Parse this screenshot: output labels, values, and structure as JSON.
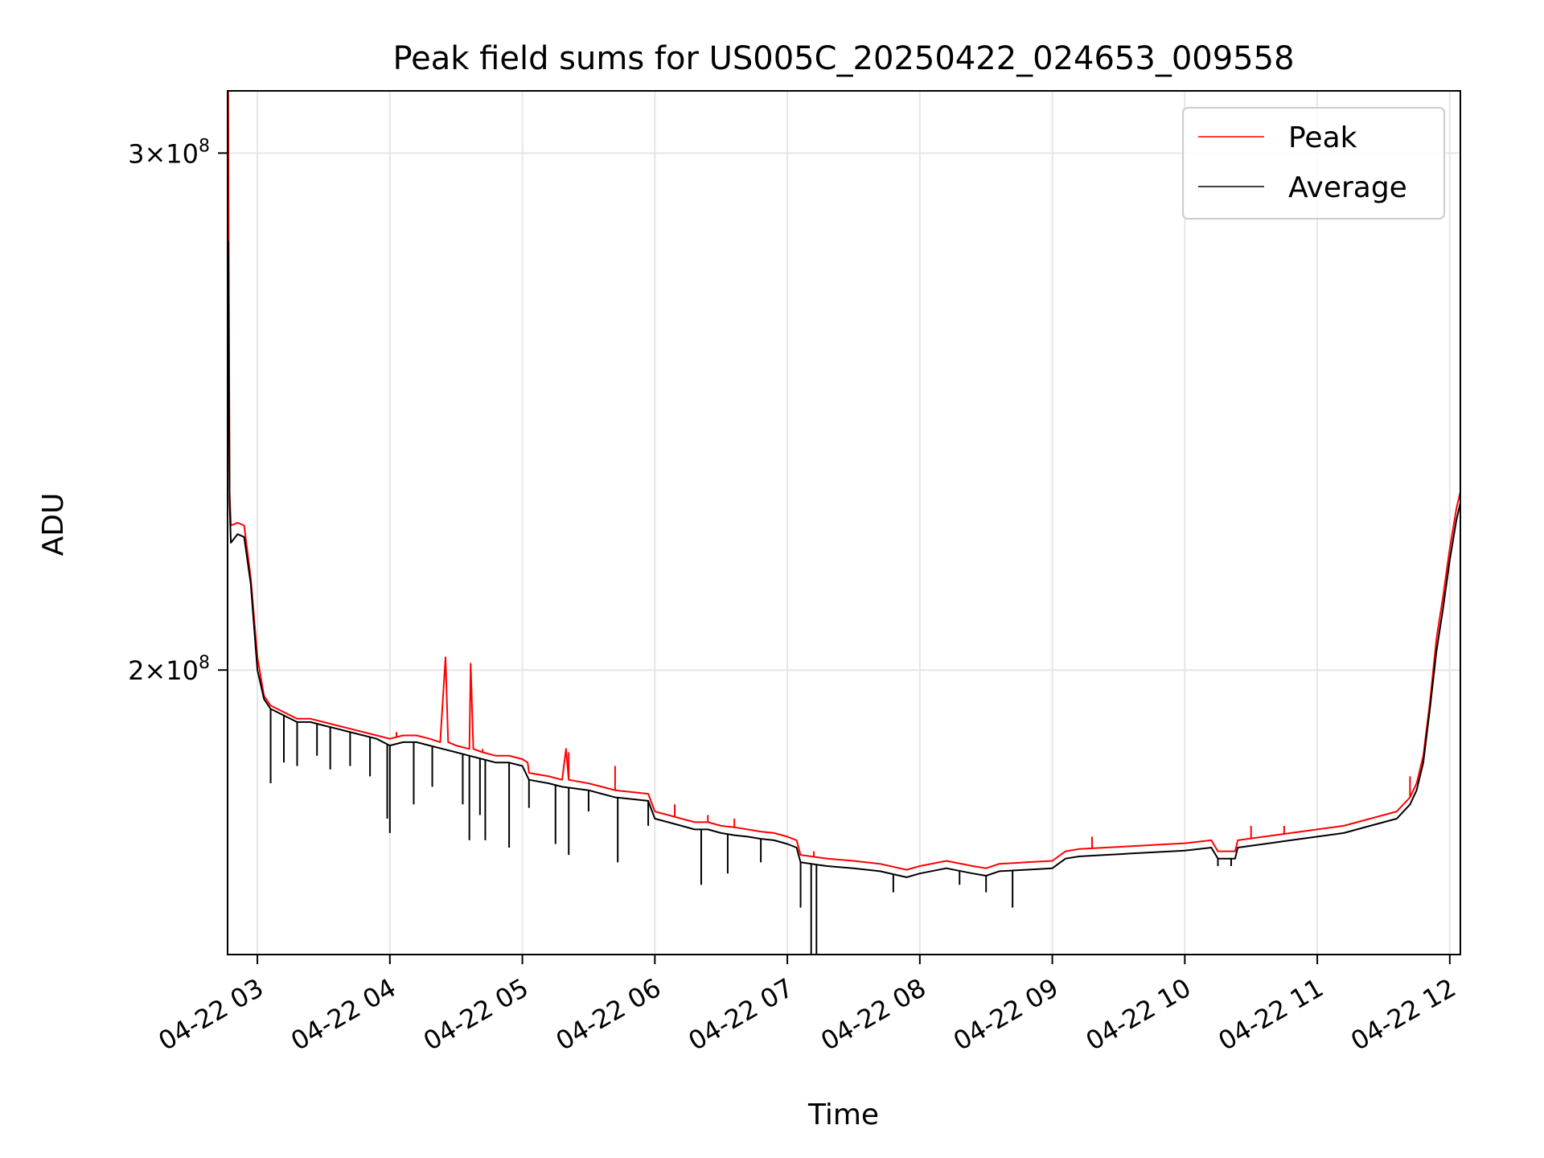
{
  "chart_data": {
    "type": "line",
    "title": "Peak field sums for US005C_20250422_024653_009558",
    "xlabel": "Time",
    "ylabel": "ADU",
    "x_unit": "hours on 2025-04-22",
    "xlim": [
      2.775,
      12.08
    ],
    "ylim": [
      160000000.0,
      315000000.0
    ],
    "yscale": "log",
    "grid": true,
    "legend_position": "upper right",
    "x_ticks": [
      {
        "value": 3,
        "label": "04-22 03"
      },
      {
        "value": 4,
        "label": "04-22 04"
      },
      {
        "value": 5,
        "label": "04-22 05"
      },
      {
        "value": 6,
        "label": "04-22 06"
      },
      {
        "value": 7,
        "label": "04-22 07"
      },
      {
        "value": 8,
        "label": "04-22 08"
      },
      {
        "value": 9,
        "label": "04-22 09"
      },
      {
        "value": 10,
        "label": "04-22 10"
      },
      {
        "value": 11,
        "label": "04-22 11"
      },
      {
        "value": 12,
        "label": "04-22 12"
      }
    ],
    "y_ticks": [
      {
        "value": 200000000.0,
        "mantissa": "2",
        "exp": "8"
      },
      {
        "value": 300000000.0,
        "mantissa": "3",
        "exp": "8"
      }
    ],
    "series": [
      {
        "name": "Peak",
        "color": "#ff0000",
        "points": [
          [
            2.78,
            315000000.0
          ],
          [
            2.79,
            230000000.0
          ],
          [
            2.8,
            224000000.0
          ],
          [
            2.85,
            224500000.0
          ],
          [
            2.9,
            224000000.0
          ],
          [
            2.95,
            215000000.0
          ],
          [
            3.0,
            202000000.0
          ],
          [
            3.05,
            196000000.0
          ],
          [
            3.1,
            194500000.0
          ],
          [
            3.2,
            193500000.0
          ],
          [
            3.3,
            192500000.0
          ],
          [
            3.4,
            192500000.0
          ],
          [
            3.5,
            192000000.0
          ],
          [
            3.6,
            191500000.0
          ],
          [
            3.7,
            191000000.0
          ],
          [
            3.8,
            190500000.0
          ],
          [
            3.9,
            190000000.0
          ],
          [
            4.0,
            189500000.0
          ],
          [
            4.1,
            190000000.0
          ],
          [
            4.2,
            190000000.0
          ],
          [
            4.3,
            189500000.0
          ],
          [
            4.38,
            189000000.0
          ],
          [
            4.42,
            202000000.0
          ],
          [
            4.44,
            189000000.0
          ],
          [
            4.5,
            188500000.0
          ],
          [
            4.6,
            188000000.0
          ],
          [
            4.61,
            201000000.0
          ],
          [
            4.63,
            188000000.0
          ],
          [
            4.7,
            187500000.0
          ],
          [
            4.8,
            187000000.0
          ],
          [
            4.9,
            187000000.0
          ],
          [
            5.0,
            186500000.0
          ],
          [
            5.04,
            186000000.0
          ],
          [
            5.05,
            184500000.0
          ],
          [
            5.2,
            184000000.0
          ],
          [
            5.3,
            183500000.0
          ],
          [
            5.33,
            188000000.0
          ],
          [
            5.35,
            183500000.0
          ],
          [
            5.5,
            183000000.0
          ],
          [
            5.6,
            182500000.0
          ],
          [
            5.7,
            182000000.0
          ],
          [
            5.8,
            181800000.0
          ],
          [
            5.95,
            181500000.0
          ],
          [
            6.0,
            179000000.0
          ],
          [
            6.1,
            178500000.0
          ],
          [
            6.2,
            178000000.0
          ],
          [
            6.3,
            177500000.0
          ],
          [
            6.4,
            177500000.0
          ],
          [
            6.5,
            177000000.0
          ],
          [
            6.6,
            176800000.0
          ],
          [
            6.7,
            176500000.0
          ],
          [
            6.8,
            176200000.0
          ],
          [
            6.9,
            176000000.0
          ],
          [
            7.0,
            175500000.0
          ],
          [
            7.07,
            175000000.0
          ],
          [
            7.1,
            173000000.0
          ],
          [
            7.3,
            172500000.0
          ],
          [
            7.5,
            172200000.0
          ],
          [
            7.7,
            171800000.0
          ],
          [
            7.9,
            171000000.0
          ],
          [
            8.0,
            171500000.0
          ],
          [
            8.2,
            172200000.0
          ],
          [
            8.4,
            171500000.0
          ],
          [
            8.5,
            171200000.0
          ],
          [
            8.6,
            171800000.0
          ],
          [
            8.8,
            172000000.0
          ],
          [
            9.0,
            172200000.0
          ],
          [
            9.1,
            173500000.0
          ],
          [
            9.2,
            173800000.0
          ],
          [
            9.4,
            174000000.0
          ],
          [
            9.6,
            174200000.0
          ],
          [
            9.8,
            174400000.0
          ],
          [
            10.0,
            174600000.0
          ],
          [
            10.2,
            175000000.0
          ],
          [
            10.25,
            173500000.0
          ],
          [
            10.38,
            173500000.0
          ],
          [
            10.4,
            175000000.0
          ],
          [
            10.6,
            175500000.0
          ],
          [
            10.8,
            176000000.0
          ],
          [
            11.0,
            176500000.0
          ],
          [
            11.2,
            177000000.0
          ],
          [
            11.4,
            178000000.0
          ],
          [
            11.6,
            179000000.0
          ],
          [
            11.7,
            181000000.0
          ],
          [
            11.75,
            183000000.0
          ],
          [
            11.8,
            187000000.0
          ],
          [
            11.85,
            195000000.0
          ],
          [
            11.9,
            205000000.0
          ],
          [
            11.95,
            212000000.0
          ],
          [
            12.0,
            220000000.0
          ],
          [
            12.05,
            227000000.0
          ],
          [
            12.08,
            230000000.0
          ]
        ]
      },
      {
        "name": "Average",
        "color": "#000000",
        "points": [
          [
            2.78,
            280000000.0
          ],
          [
            2.79,
            228000000.0
          ],
          [
            2.8,
            221000000.0
          ],
          [
            2.85,
            222500000.0
          ],
          [
            2.9,
            222000000.0
          ],
          [
            2.95,
            214000000.0
          ],
          [
            3.0,
            200000000.0
          ],
          [
            3.05,
            195500000.0
          ],
          [
            3.1,
            194000000.0
          ],
          [
            3.2,
            193000000.0
          ],
          [
            3.3,
            192000000.0
          ],
          [
            3.4,
            192000000.0
          ],
          [
            3.5,
            191500000.0
          ],
          [
            3.6,
            191000000.0
          ],
          [
            3.7,
            190500000.0
          ],
          [
            3.8,
            190000000.0
          ],
          [
            3.9,
            189500000.0
          ],
          [
            4.0,
            188500000.0
          ],
          [
            4.1,
            189000000.0
          ],
          [
            4.2,
            189000000.0
          ],
          [
            4.3,
            188500000.0
          ],
          [
            4.4,
            188000000.0
          ],
          [
            4.5,
            187500000.0
          ],
          [
            4.6,
            187000000.0
          ],
          [
            4.7,
            186500000.0
          ],
          [
            4.8,
            186000000.0
          ],
          [
            4.9,
            186000000.0
          ],
          [
            5.0,
            185500000.0
          ],
          [
            5.05,
            183500000.0
          ],
          [
            5.2,
            183000000.0
          ],
          [
            5.3,
            182500000.0
          ],
          [
            5.5,
            182000000.0
          ],
          [
            5.6,
            181500000.0
          ],
          [
            5.7,
            181000000.0
          ],
          [
            5.8,
            180800000.0
          ],
          [
            5.95,
            180500000.0
          ],
          [
            6.0,
            178000000.0
          ],
          [
            6.1,
            177500000.0
          ],
          [
            6.2,
            177000000.0
          ],
          [
            6.3,
            176500000.0
          ],
          [
            6.4,
            176500000.0
          ],
          [
            6.5,
            176000000.0
          ],
          [
            6.6,
            175700000.0
          ],
          [
            6.7,
            175500000.0
          ],
          [
            6.8,
            175200000.0
          ],
          [
            6.9,
            175000000.0
          ],
          [
            7.0,
            174500000.0
          ],
          [
            7.07,
            174000000.0
          ],
          [
            7.1,
            172000000.0
          ],
          [
            7.3,
            171500000.0
          ],
          [
            7.5,
            171200000.0
          ],
          [
            7.7,
            170800000.0
          ],
          [
            7.9,
            170000000.0
          ],
          [
            8.0,
            170500000.0
          ],
          [
            8.2,
            171200000.0
          ],
          [
            8.4,
            170500000.0
          ],
          [
            8.5,
            170200000.0
          ],
          [
            8.6,
            170800000.0
          ],
          [
            8.8,
            171000000.0
          ],
          [
            9.0,
            171200000.0
          ],
          [
            9.1,
            172500000.0
          ],
          [
            9.2,
            172800000.0
          ],
          [
            9.4,
            173000000.0
          ],
          [
            9.6,
            173200000.0
          ],
          [
            9.8,
            173400000.0
          ],
          [
            10.0,
            173600000.0
          ],
          [
            10.2,
            174000000.0
          ],
          [
            10.25,
            172500000.0
          ],
          [
            10.38,
            172500000.0
          ],
          [
            10.4,
            174000000.0
          ],
          [
            10.6,
            174500000.0
          ],
          [
            10.8,
            175000000.0
          ],
          [
            11.0,
            175500000.0
          ],
          [
            11.2,
            176000000.0
          ],
          [
            11.4,
            177000000.0
          ],
          [
            11.6,
            178000000.0
          ],
          [
            11.7,
            180000000.0
          ],
          [
            11.75,
            182000000.0
          ],
          [
            11.8,
            186000000.0
          ],
          [
            11.85,
            194000000.0
          ],
          [
            11.9,
            203000000.0
          ],
          [
            11.95,
            210000000.0
          ],
          [
            12.0,
            218000000.0
          ],
          [
            12.05,
            225000000.0
          ],
          [
            12.08,
            228000000.0
          ]
        ]
      }
    ],
    "dips": [
      [
        3.1,
        183000000.0
      ],
      [
        3.2,
        186000000.0
      ],
      [
        3.3,
        185500000.0
      ],
      [
        3.45,
        187000000.0
      ],
      [
        3.55,
        185000000.0
      ],
      [
        3.7,
        185500000.0
      ],
      [
        3.85,
        184000000.0
      ],
      [
        3.98,
        178000000.0
      ],
      [
        4.0,
        176000000.0
      ],
      [
        4.18,
        180000000.0
      ],
      [
        4.32,
        182500000.0
      ],
      [
        4.55,
        180000000.0
      ],
      [
        4.6,
        175000000.0
      ],
      [
        4.68,
        178500000.0
      ],
      [
        4.72,
        175000000.0
      ],
      [
        4.9,
        174000000.0
      ],
      [
        5.05,
        179500000.0
      ],
      [
        5.25,
        174500000.0
      ],
      [
        5.35,
        173000000.0
      ],
      [
        5.5,
        179000000.0
      ],
      [
        5.72,
        172000000.0
      ],
      [
        5.95,
        177000000.0
      ],
      [
        6.35,
        169000000.0
      ],
      [
        6.55,
        170500000.0
      ],
      [
        6.8,
        172000000.0
      ],
      [
        7.1,
        166000000.0
      ],
      [
        7.18,
        160000000.0
      ],
      [
        7.22,
        160000000.0
      ],
      [
        7.8,
        168000000.0
      ],
      [
        8.3,
        169000000.0
      ],
      [
        8.5,
        168000000.0
      ],
      [
        8.7,
        166000000.0
      ],
      [
        10.25,
        171500000.0
      ],
      [
        10.35,
        171500000.0
      ]
    ],
    "spikes": [
      [
        4.05,
        190500000.0
      ],
      [
        4.7,
        188000000.0
      ],
      [
        5.35,
        187500000.0
      ],
      [
        5.7,
        185500000.0
      ],
      [
        6.15,
        180000000.0
      ],
      [
        6.4,
        178500000.0
      ],
      [
        6.6,
        178000000.0
      ],
      [
        7.2,
        173500000.0
      ],
      [
        9.3,
        175500000.0
      ],
      [
        10.5,
        177000000.0
      ],
      [
        10.75,
        177000000.0
      ],
      [
        11.7,
        184000000.0
      ]
    ]
  }
}
